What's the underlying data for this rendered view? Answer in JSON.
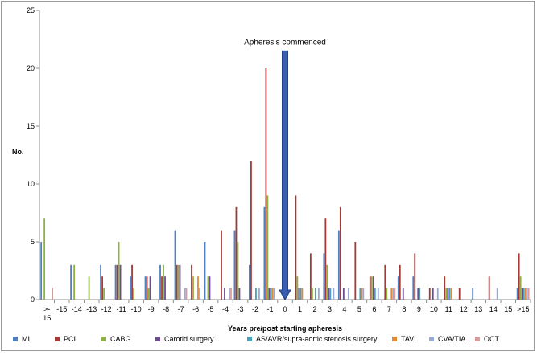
{
  "chart_data": {
    "type": "bar",
    "xlabel": "Years pre/post starting apheresis",
    "ylabel": "No.",
    "ylim": [
      0,
      25
    ],
    "yticks": [
      0,
      5,
      10,
      15,
      20,
      25
    ],
    "grid": false,
    "legend_position": "bottom",
    "categories": [
      ">-\n15",
      "-15",
      "-14",
      "-13",
      "-12",
      "-11",
      "-10",
      "-9",
      "-8",
      "-7",
      "-6",
      "-5",
      "-4",
      "-3",
      "-2",
      "-1",
      "0",
      "1",
      "2",
      "3",
      "4",
      "5",
      "6",
      "7",
      "8",
      "9",
      "10",
      "11",
      "12",
      "13",
      "14",
      "15",
      ">15"
    ],
    "series": [
      {
        "name": "MI",
        "color": "#4f7fbf",
        "values": [
          5,
          0,
          3,
          0,
          3,
          3,
          2,
          2,
          3,
          6,
          0,
          5,
          0,
          6,
          3,
          8,
          0,
          0,
          0,
          4,
          6,
          0,
          0,
          0,
          2,
          2,
          0,
          0,
          0,
          1,
          0,
          0,
          1
        ]
      },
      {
        "name": "PCI",
        "color": "#a33a36",
        "values": [
          0,
          0,
          0,
          0,
          2,
          3,
          3,
          2,
          2,
          3,
          3,
          0,
          6,
          8,
          12,
          20,
          0,
          9,
          4,
          7,
          8,
          5,
          2,
          3,
          3,
          4,
          1,
          2,
          1,
          0,
          2,
          0,
          4
        ]
      },
      {
        "name": "CABG",
        "color": "#8fb046",
        "values": [
          7,
          0,
          3,
          2,
          1,
          5,
          1,
          1,
          3,
          3,
          2,
          2,
          0,
          5,
          0,
          9,
          0,
          2,
          1,
          3,
          0,
          0,
          2,
          1,
          0,
          0,
          0,
          1,
          0,
          0,
          0,
          0,
          2
        ]
      },
      {
        "name": "Carotid surgery",
        "color": "#6b4c93",
        "values": [
          0,
          0,
          0,
          0,
          0,
          3,
          0,
          2,
          2,
          3,
          0,
          2,
          1,
          1,
          0,
          1,
          0,
          1,
          0,
          1,
          1,
          0,
          2,
          0,
          1,
          1,
          1,
          1,
          0,
          0,
          0,
          0,
          1
        ]
      },
      {
        "name": "AS/AVR/supra-aortic stenosis surgery",
        "color": "#4aa0b8",
        "values": [
          0,
          0,
          0,
          0,
          0,
          0,
          0,
          0,
          0,
          0,
          0,
          0,
          0,
          0,
          1,
          1,
          0,
          1,
          1,
          1,
          0,
          1,
          1,
          0,
          0,
          1,
          0,
          1,
          0,
          0,
          0,
          0,
          1
        ]
      },
      {
        "name": "TAVI",
        "color": "#e08a3a",
        "values": [
          0,
          0,
          0,
          0,
          0,
          0,
          0,
          0,
          0,
          0,
          2,
          0,
          0,
          0,
          0,
          1,
          0,
          1,
          0,
          0,
          0,
          1,
          0,
          1,
          0,
          0,
          0,
          1,
          0,
          0,
          0,
          0,
          1
        ]
      },
      {
        "name": "CVA/TIA",
        "color": "#98a9d6",
        "values": [
          0,
          0,
          0,
          0,
          0,
          0,
          0,
          0,
          0,
          1,
          1,
          0,
          1,
          0,
          1,
          1,
          0,
          0,
          1,
          1,
          1,
          1,
          1,
          1,
          0,
          0,
          1,
          0,
          0,
          0,
          1,
          0,
          1
        ]
      },
      {
        "name": "OCT",
        "color": "#d99a98",
        "values": [
          1,
          0,
          0,
          0,
          0,
          0,
          0,
          0,
          0,
          1,
          0,
          0,
          1,
          0,
          0,
          0,
          0,
          0,
          0,
          0,
          0,
          0,
          0,
          1,
          0,
          0,
          0,
          0,
          0,
          0,
          0,
          0,
          1
        ]
      }
    ],
    "extra_bar_oct_first": 1,
    "annotation": {
      "text": "Apheresis commenced",
      "category": "0",
      "value": 21.5,
      "color": "#3a5fb0",
      "border": "#1f3f86"
    }
  }
}
